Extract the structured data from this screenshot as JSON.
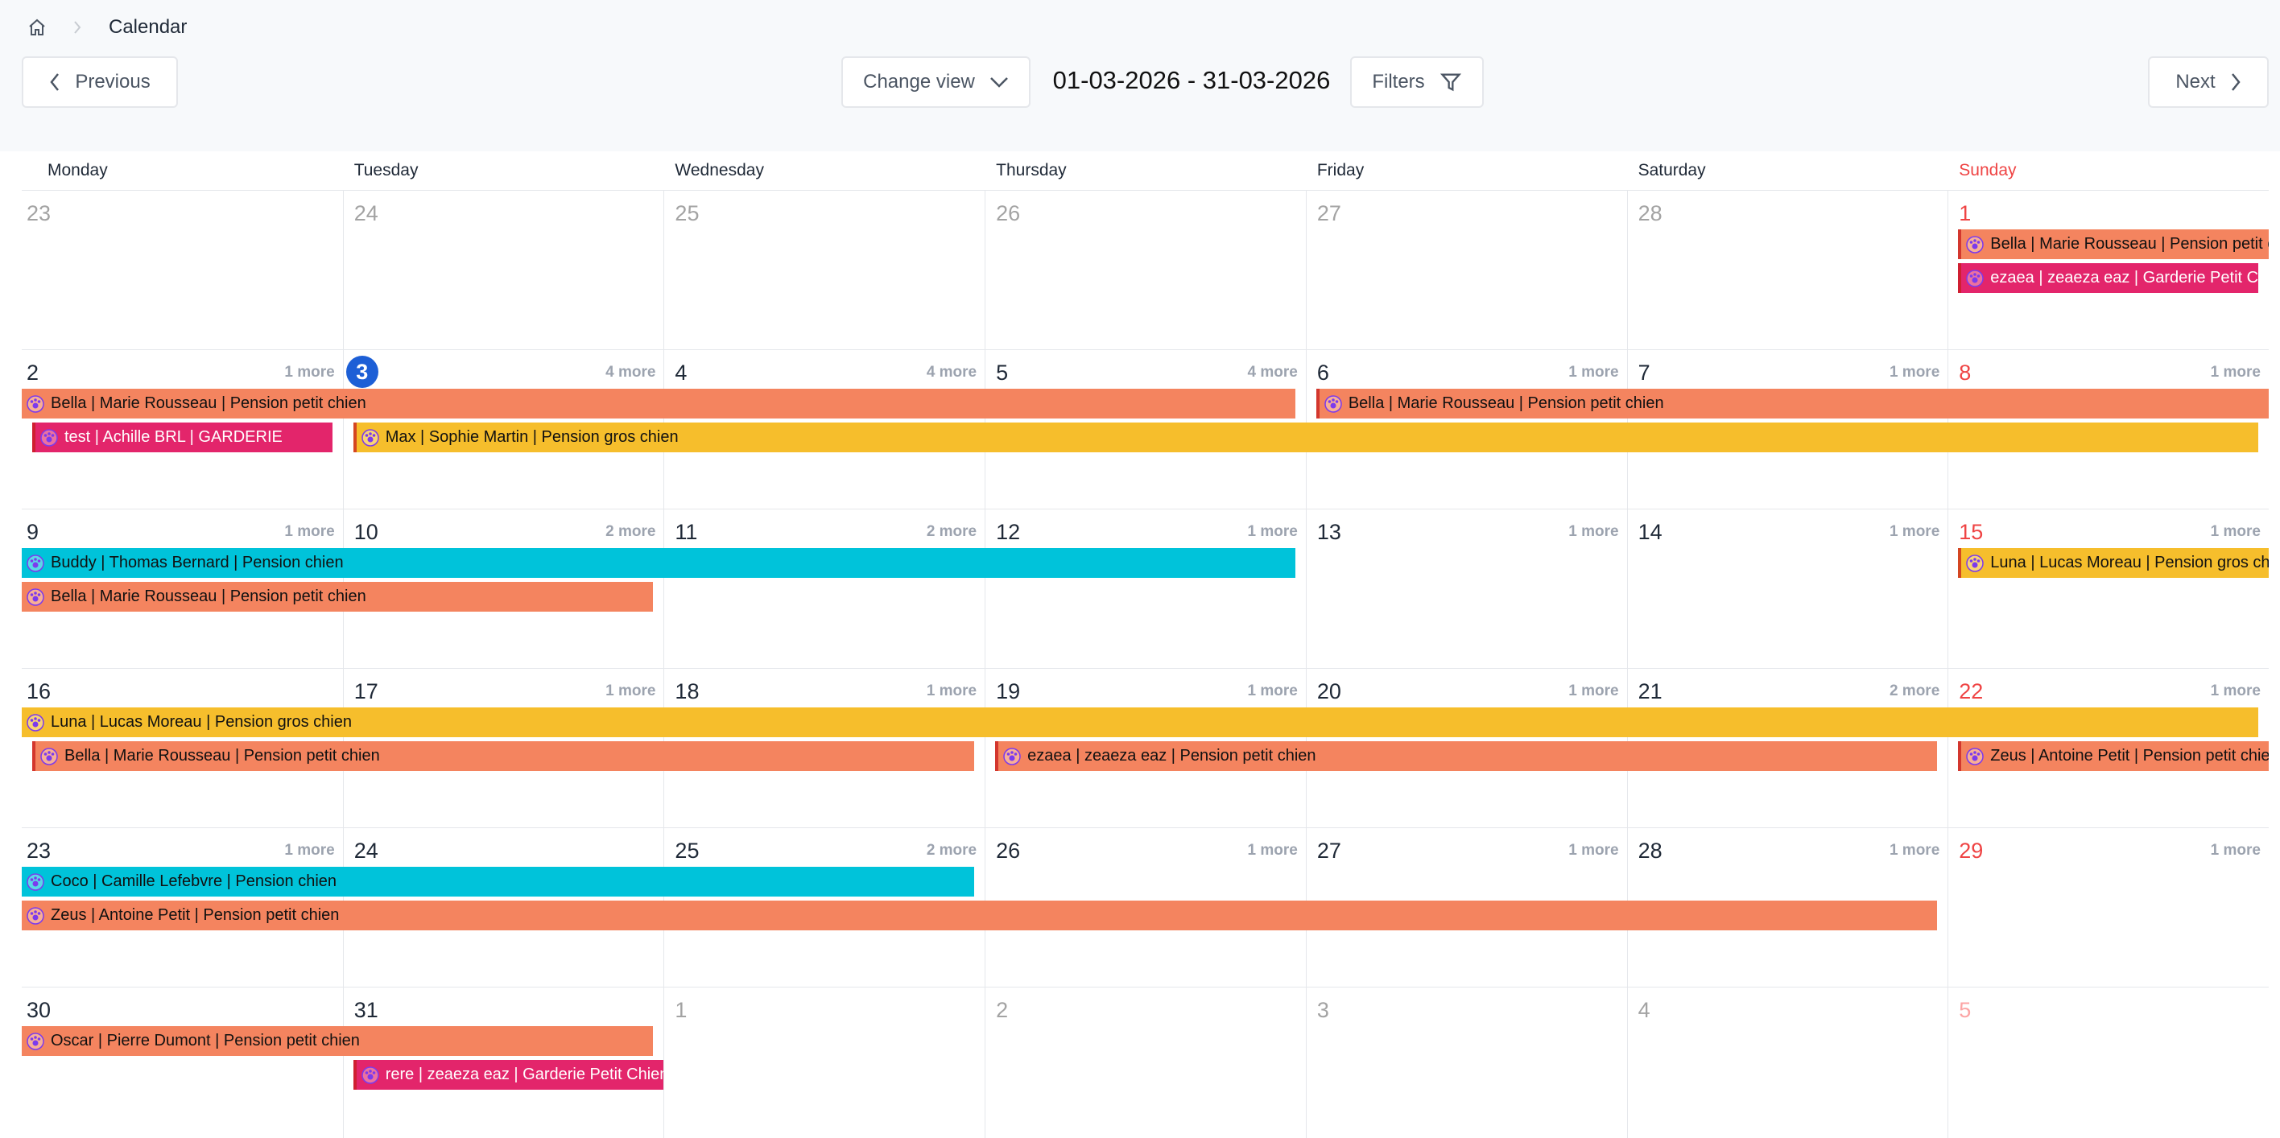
{
  "breadcrumb": {
    "current": "Calendar"
  },
  "toolbar": {
    "previous": "Previous",
    "change_view": "Change view",
    "range": "01-03-2026 - 31-03-2026",
    "filters": "Filters",
    "next": "Next"
  },
  "weekdays": [
    "Monday",
    "Tuesday",
    "Wednesday",
    "Thursday",
    "Friday",
    "Saturday",
    "Sunday"
  ],
  "weeks": [
    {
      "days": [
        {
          "label": "23",
          "muted": true
        },
        {
          "label": "24",
          "muted": true
        },
        {
          "label": "25",
          "muted": true
        },
        {
          "label": "26",
          "muted": true
        },
        {
          "label": "27",
          "muted": true
        },
        {
          "label": "28",
          "muted": true
        },
        {
          "label": "1"
        }
      ],
      "events": [
        {
          "text": "Bella | Marie Rousseau | Pension petit chien",
          "color": "#f4845f",
          "start": 6,
          "end": 6,
          "lane": 0,
          "open_end": true
        },
        {
          "text": "ezaea | zeaeza eaz | Garderie Petit Chien",
          "color": "#e3256b",
          "start": 6,
          "end": 6,
          "lane": 1
        }
      ]
    },
    {
      "days": [
        {
          "label": "2",
          "more": "1 more"
        },
        {
          "label": "3",
          "more": "4 more",
          "today": true
        },
        {
          "label": "4",
          "more": "4 more"
        },
        {
          "label": "5",
          "more": "4 more"
        },
        {
          "label": "6",
          "more": "1 more"
        },
        {
          "label": "7",
          "more": "1 more"
        },
        {
          "label": "8",
          "more": "1 more"
        }
      ],
      "events": [
        {
          "text": "Bella | Marie Rousseau | Pension petit chien",
          "color": "#f4845f",
          "start": 0,
          "end": 3,
          "lane": 0,
          "open_start": true
        },
        {
          "text": "Bella | Marie Rousseau | Pension petit chien",
          "color": "#f4845f",
          "start": 4,
          "end": 6,
          "lane": 0,
          "open_end": true
        },
        {
          "text": "test | Achille BRL | GARDERIE",
          "color": "#e3256b",
          "start": 0,
          "end": 0,
          "lane": 1
        },
        {
          "text": "Max | Sophie Martin | Pension gros chien",
          "color": "#f6be2c",
          "start": 1,
          "end": 6,
          "lane": 1
        }
      ]
    },
    {
      "days": [
        {
          "label": "9",
          "more": "1 more"
        },
        {
          "label": "10",
          "more": "2 more"
        },
        {
          "label": "11",
          "more": "2 more"
        },
        {
          "label": "12",
          "more": "1 more"
        },
        {
          "label": "13",
          "more": "1 more"
        },
        {
          "label": "14",
          "more": "1 more"
        },
        {
          "label": "15",
          "more": "1 more"
        }
      ],
      "events": [
        {
          "text": "Buddy | Thomas Bernard | Pension chien",
          "color": "#00c3da",
          "start": 0,
          "end": 3,
          "lane": 0,
          "open_start": true
        },
        {
          "text": "Bella | Marie Rousseau | Pension petit chien",
          "color": "#f4845f",
          "start": 0,
          "end": 1,
          "lane": 1,
          "open_start": true
        },
        {
          "text": "Luna | Lucas Moreau | Pension gros chien",
          "color": "#f6be2c",
          "start": 6,
          "end": 6,
          "lane": 0,
          "open_end": true
        }
      ]
    },
    {
      "days": [
        {
          "label": "16"
        },
        {
          "label": "17",
          "more": "1 more"
        },
        {
          "label": "18",
          "more": "1 more"
        },
        {
          "label": "19",
          "more": "1 more"
        },
        {
          "label": "20",
          "more": "1 more"
        },
        {
          "label": "21",
          "more": "2 more"
        },
        {
          "label": "22",
          "more": "1 more"
        }
      ],
      "events": [
        {
          "text": "Luna | Lucas Moreau | Pension gros chien",
          "color": "#f6be2c",
          "start": 0,
          "end": 6,
          "lane": 0,
          "open_start": true
        },
        {
          "text": "Bella | Marie Rousseau | Pension petit chien",
          "color": "#f4845f",
          "start": 0,
          "end": 2,
          "lane": 1
        },
        {
          "text": "ezaea | zeaeza eaz | Pension petit chien",
          "color": "#f4845f",
          "start": 3,
          "end": 5,
          "lane": 1
        },
        {
          "text": "Zeus | Antoine Petit | Pension petit chien",
          "color": "#f4845f",
          "start": 6,
          "end": 6,
          "lane": 1,
          "open_end": true
        }
      ]
    },
    {
      "days": [
        {
          "label": "23",
          "more": "1 more"
        },
        {
          "label": "24"
        },
        {
          "label": "25",
          "more": "2 more"
        },
        {
          "label": "26",
          "more": "1 more"
        },
        {
          "label": "27",
          "more": "1 more"
        },
        {
          "label": "28",
          "more": "1 more"
        },
        {
          "label": "29",
          "more": "1 more"
        }
      ],
      "events": [
        {
          "text": "Coco | Camille Lefebvre | Pension chien",
          "color": "#00c3da",
          "start": 0,
          "end": 2,
          "lane": 0,
          "open_start": true
        },
        {
          "text": "Zeus | Antoine Petit | Pension petit chien",
          "color": "#f4845f",
          "start": 0,
          "end": 5,
          "lane": 1,
          "open_start": true
        }
      ]
    },
    {
      "days": [
        {
          "label": "30"
        },
        {
          "label": "31"
        },
        {
          "label": "1",
          "muted": true
        },
        {
          "label": "2",
          "muted": true
        },
        {
          "label": "3",
          "muted": true
        },
        {
          "label": "4",
          "muted": true
        },
        {
          "label": "5",
          "muted": true
        }
      ],
      "events": [
        {
          "text": "Oscar | Pierre Dumont | Pension petit chien",
          "color": "#f4845f",
          "start": 0,
          "end": 1,
          "lane": 0,
          "open_start": true
        },
        {
          "text": "rere | zeaeza eaz | Garderie Petit Chien",
          "color": "#e3256b",
          "start": 1,
          "end": 1,
          "lane": 1,
          "open_end": true
        }
      ]
    }
  ]
}
